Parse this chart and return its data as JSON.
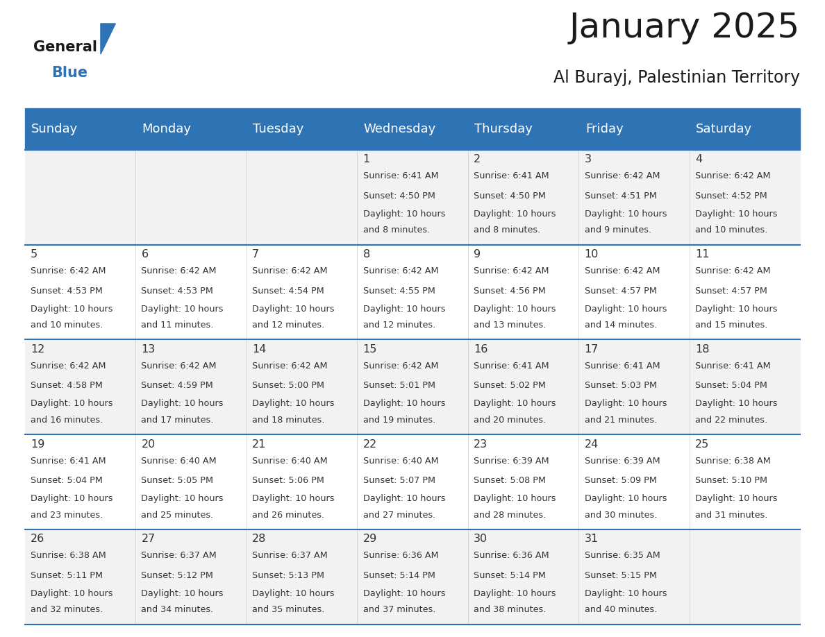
{
  "title": "January 2025",
  "subtitle": "Al Burayj, Palestinian Territory",
  "days_of_week": [
    "Sunday",
    "Monday",
    "Tuesday",
    "Wednesday",
    "Thursday",
    "Friday",
    "Saturday"
  ],
  "header_bg": "#2E74B5",
  "header_text_color": "#FFFFFF",
  "cell_bg_even": "#F2F2F2",
  "cell_bg_odd": "#FFFFFF",
  "row_line_color": "#2E74B5",
  "text_color": "#333333",
  "calendar_data": [
    [
      null,
      null,
      null,
      {
        "day": 1,
        "sunrise": "6:41 AM",
        "sunset": "4:50 PM",
        "daylight_extra": "8 minutes."
      },
      {
        "day": 2,
        "sunrise": "6:41 AM",
        "sunset": "4:50 PM",
        "daylight_extra": "8 minutes."
      },
      {
        "day": 3,
        "sunrise": "6:42 AM",
        "sunset": "4:51 PM",
        "daylight_extra": "9 minutes."
      },
      {
        "day": 4,
        "sunrise": "6:42 AM",
        "sunset": "4:52 PM",
        "daylight_extra": "10 minutes."
      }
    ],
    [
      {
        "day": 5,
        "sunrise": "6:42 AM",
        "sunset": "4:53 PM",
        "daylight_extra": "10 minutes."
      },
      {
        "day": 6,
        "sunrise": "6:42 AM",
        "sunset": "4:53 PM",
        "daylight_extra": "11 minutes."
      },
      {
        "day": 7,
        "sunrise": "6:42 AM",
        "sunset": "4:54 PM",
        "daylight_extra": "12 minutes."
      },
      {
        "day": 8,
        "sunrise": "6:42 AM",
        "sunset": "4:55 PM",
        "daylight_extra": "12 minutes."
      },
      {
        "day": 9,
        "sunrise": "6:42 AM",
        "sunset": "4:56 PM",
        "daylight_extra": "13 minutes."
      },
      {
        "day": 10,
        "sunrise": "6:42 AM",
        "sunset": "4:57 PM",
        "daylight_extra": "14 minutes."
      },
      {
        "day": 11,
        "sunrise": "6:42 AM",
        "sunset": "4:57 PM",
        "daylight_extra": "15 minutes."
      }
    ],
    [
      {
        "day": 12,
        "sunrise": "6:42 AM",
        "sunset": "4:58 PM",
        "daylight_extra": "16 minutes."
      },
      {
        "day": 13,
        "sunrise": "6:42 AM",
        "sunset": "4:59 PM",
        "daylight_extra": "17 minutes."
      },
      {
        "day": 14,
        "sunrise": "6:42 AM",
        "sunset": "5:00 PM",
        "daylight_extra": "18 minutes."
      },
      {
        "day": 15,
        "sunrise": "6:42 AM",
        "sunset": "5:01 PM",
        "daylight_extra": "19 minutes."
      },
      {
        "day": 16,
        "sunrise": "6:41 AM",
        "sunset": "5:02 PM",
        "daylight_extra": "20 minutes."
      },
      {
        "day": 17,
        "sunrise": "6:41 AM",
        "sunset": "5:03 PM",
        "daylight_extra": "21 minutes."
      },
      {
        "day": 18,
        "sunrise": "6:41 AM",
        "sunset": "5:04 PM",
        "daylight_extra": "22 minutes."
      }
    ],
    [
      {
        "day": 19,
        "sunrise": "6:41 AM",
        "sunset": "5:04 PM",
        "daylight_extra": "23 minutes."
      },
      {
        "day": 20,
        "sunrise": "6:40 AM",
        "sunset": "5:05 PM",
        "daylight_extra": "25 minutes."
      },
      {
        "day": 21,
        "sunrise": "6:40 AM",
        "sunset": "5:06 PM",
        "daylight_extra": "26 minutes."
      },
      {
        "day": 22,
        "sunrise": "6:40 AM",
        "sunset": "5:07 PM",
        "daylight_extra": "27 minutes."
      },
      {
        "day": 23,
        "sunrise": "6:39 AM",
        "sunset": "5:08 PM",
        "daylight_extra": "28 minutes."
      },
      {
        "day": 24,
        "sunrise": "6:39 AM",
        "sunset": "5:09 PM",
        "daylight_extra": "30 minutes."
      },
      {
        "day": 25,
        "sunrise": "6:38 AM",
        "sunset": "5:10 PM",
        "daylight_extra": "31 minutes."
      }
    ],
    [
      {
        "day": 26,
        "sunrise": "6:38 AM",
        "sunset": "5:11 PM",
        "daylight_extra": "32 minutes."
      },
      {
        "day": 27,
        "sunrise": "6:37 AM",
        "sunset": "5:12 PM",
        "daylight_extra": "34 minutes."
      },
      {
        "day": 28,
        "sunrise": "6:37 AM",
        "sunset": "5:13 PM",
        "daylight_extra": "35 minutes."
      },
      {
        "day": 29,
        "sunrise": "6:36 AM",
        "sunset": "5:14 PM",
        "daylight_extra": "37 minutes."
      },
      {
        "day": 30,
        "sunrise": "6:36 AM",
        "sunset": "5:14 PM",
        "daylight_extra": "38 minutes."
      },
      {
        "day": 31,
        "sunrise": "6:35 AM",
        "sunset": "5:15 PM",
        "daylight_extra": "40 minutes."
      },
      null
    ]
  ],
  "logo_text_general": "General",
  "logo_text_blue": "Blue",
  "logo_color_general": "#1A1A1A",
  "logo_color_blue": "#2E74B5",
  "logo_triangle_color": "#2E74B5"
}
